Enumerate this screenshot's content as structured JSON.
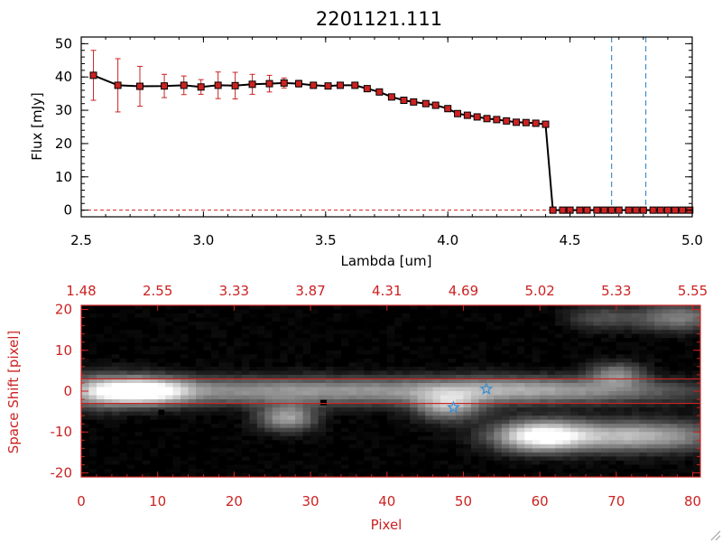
{
  "colors": {
    "background": "#ffffff",
    "axis_top": "#000000",
    "axis_bottom": "#cc2222",
    "line": "#000000",
    "marker": "#cc2222",
    "errorbar": "#cc2222",
    "vline": "#3b8fd1",
    "hline": "#cc2222",
    "star": "#3b8fd1"
  },
  "chart_data": [
    {
      "type": "line",
      "title": "2201121.111",
      "xlabel": "Lambda [um]",
      "ylabel": "Flux [mJy]",
      "xlim": [
        2.5,
        5.0
      ],
      "ylim": [
        -2,
        52
      ],
      "xticks": [
        {
          "v": 2.5,
          "label": "2.5"
        },
        {
          "v": 3.0,
          "label": "3.0"
        },
        {
          "v": 3.5,
          "label": "3.5"
        },
        {
          "v": 4.0,
          "label": "4.0"
        },
        {
          "v": 4.5,
          "label": "4.5"
        },
        {
          "v": 5.0,
          "label": "5.0"
        }
      ],
      "yticks": [
        {
          "v": 0,
          "label": "0"
        },
        {
          "v": 10,
          "label": "10"
        },
        {
          "v": 20,
          "label": "20"
        },
        {
          "v": 30,
          "label": "30"
        },
        {
          "v": 40,
          "label": "40"
        },
        {
          "v": 50,
          "label": "50"
        }
      ],
      "x": [
        2.55,
        2.65,
        2.74,
        2.84,
        2.92,
        2.99,
        3.06,
        3.13,
        3.2,
        3.27,
        3.33,
        3.39,
        3.45,
        3.51,
        3.56,
        3.62,
        3.67,
        3.72,
        3.77,
        3.82,
        3.86,
        3.91,
        3.95,
        4.0,
        4.04,
        4.08,
        4.12,
        4.16,
        4.2,
        4.24,
        4.28,
        4.32,
        4.36,
        4.4,
        4.43,
        4.47,
        4.5,
        4.54,
        4.57,
        4.61,
        4.64,
        4.67,
        4.7,
        4.74,
        4.77,
        4.8,
        4.84,
        4.87,
        4.9,
        4.93,
        4.96,
        4.99
      ],
      "y": [
        40.5,
        37.5,
        37.2,
        37.3,
        37.5,
        37.0,
        37.5,
        37.4,
        37.8,
        38.0,
        38.2,
        38.0,
        37.5,
        37.3,
        37.5,
        37.5,
        36.5,
        35.5,
        34.0,
        33.0,
        32.5,
        32.0,
        31.5,
        30.5,
        29.0,
        28.5,
        28.0,
        27.5,
        27.2,
        26.8,
        26.4,
        26.3,
        26.1,
        25.8,
        0,
        0,
        0,
        0,
        0,
        0,
        0,
        0,
        0,
        0,
        0,
        0,
        0,
        0,
        0,
        0,
        0,
        0
      ],
      "yerr": [
        7.5,
        8,
        6,
        3.5,
        2.8,
        2.2,
        4,
        4,
        3,
        2.5,
        1.5,
        1,
        0.8,
        0.6,
        0.6,
        0.6,
        0.5,
        0.5,
        0.5,
        0.5,
        0.5,
        0.5,
        0.5,
        0.5,
        0.5,
        0.5,
        0.5,
        0.5,
        0.5,
        0.5,
        0.5,
        0.5,
        0.5,
        0.5,
        0,
        0,
        0,
        0,
        0,
        0,
        0,
        0,
        0,
        0,
        0,
        0,
        0,
        0,
        0,
        0,
        0,
        0
      ],
      "vlines": [
        4.67,
        4.81
      ],
      "grid": false
    },
    {
      "type": "heatmap",
      "xlabel": "Pixel",
      "ylabel": "Space Shift [pixel]",
      "xlim": [
        0,
        81
      ],
      "ylim": [
        -21,
        21
      ],
      "xticks": [
        0,
        10,
        20,
        30,
        40,
        50,
        60,
        70,
        80
      ],
      "yticks": [
        -20,
        -10,
        0,
        10,
        20
      ],
      "top_axis_labels": [
        "1.48",
        "2.55",
        "3.33",
        "3.87",
        "4.31",
        "4.69",
        "5.02",
        "5.33",
        "5.55"
      ],
      "hlines": [
        3,
        -3
      ],
      "stars": [
        {
          "x": 53,
          "y": 0.5
        },
        {
          "x": 48.7,
          "y": -4
        }
      ],
      "sources": [
        {
          "x": 8,
          "y": 0,
          "sx": 4,
          "sy": 2.2,
          "amp": 1.0
        },
        {
          "x": 30,
          "y": 0,
          "sx": 22,
          "sy": 2.3,
          "amp": 0.55
        },
        {
          "x": 2,
          "y": 0,
          "sx": 3,
          "sy": 3,
          "amp": 0.4
        },
        {
          "x": 27,
          "y": -6.5,
          "sx": 2.5,
          "sy": 2.2,
          "amp": 0.6
        },
        {
          "x": 48,
          "y": -3.5,
          "sx": 3,
          "sy": 2.5,
          "amp": 0.6
        },
        {
          "x": 56,
          "y": 0.5,
          "sx": 8,
          "sy": 2.2,
          "amp": 0.3
        },
        {
          "x": 60,
          "y": -11,
          "sx": 4,
          "sy": 2.5,
          "amp": 0.95
        },
        {
          "x": 72,
          "y": -11,
          "sx": 8,
          "sy": 2.5,
          "amp": 0.7
        },
        {
          "x": 70,
          "y": 4,
          "sx": 2.5,
          "sy": 2,
          "amp": 0.45
        },
        {
          "x": 78,
          "y": 18,
          "sx": 4,
          "sy": 2.2,
          "amp": 0.45
        },
        {
          "x": 68,
          "y": 18,
          "sx": 3,
          "sy": 2,
          "amp": 0.25
        },
        {
          "x": 70,
          "y": 0,
          "sx": 10,
          "sy": 2,
          "amp": 0.25
        }
      ],
      "dark_spots": [
        {
          "x": 31.7,
          "y": -2.8
        },
        {
          "x": 10.5,
          "y": -5.2
        }
      ]
    }
  ]
}
